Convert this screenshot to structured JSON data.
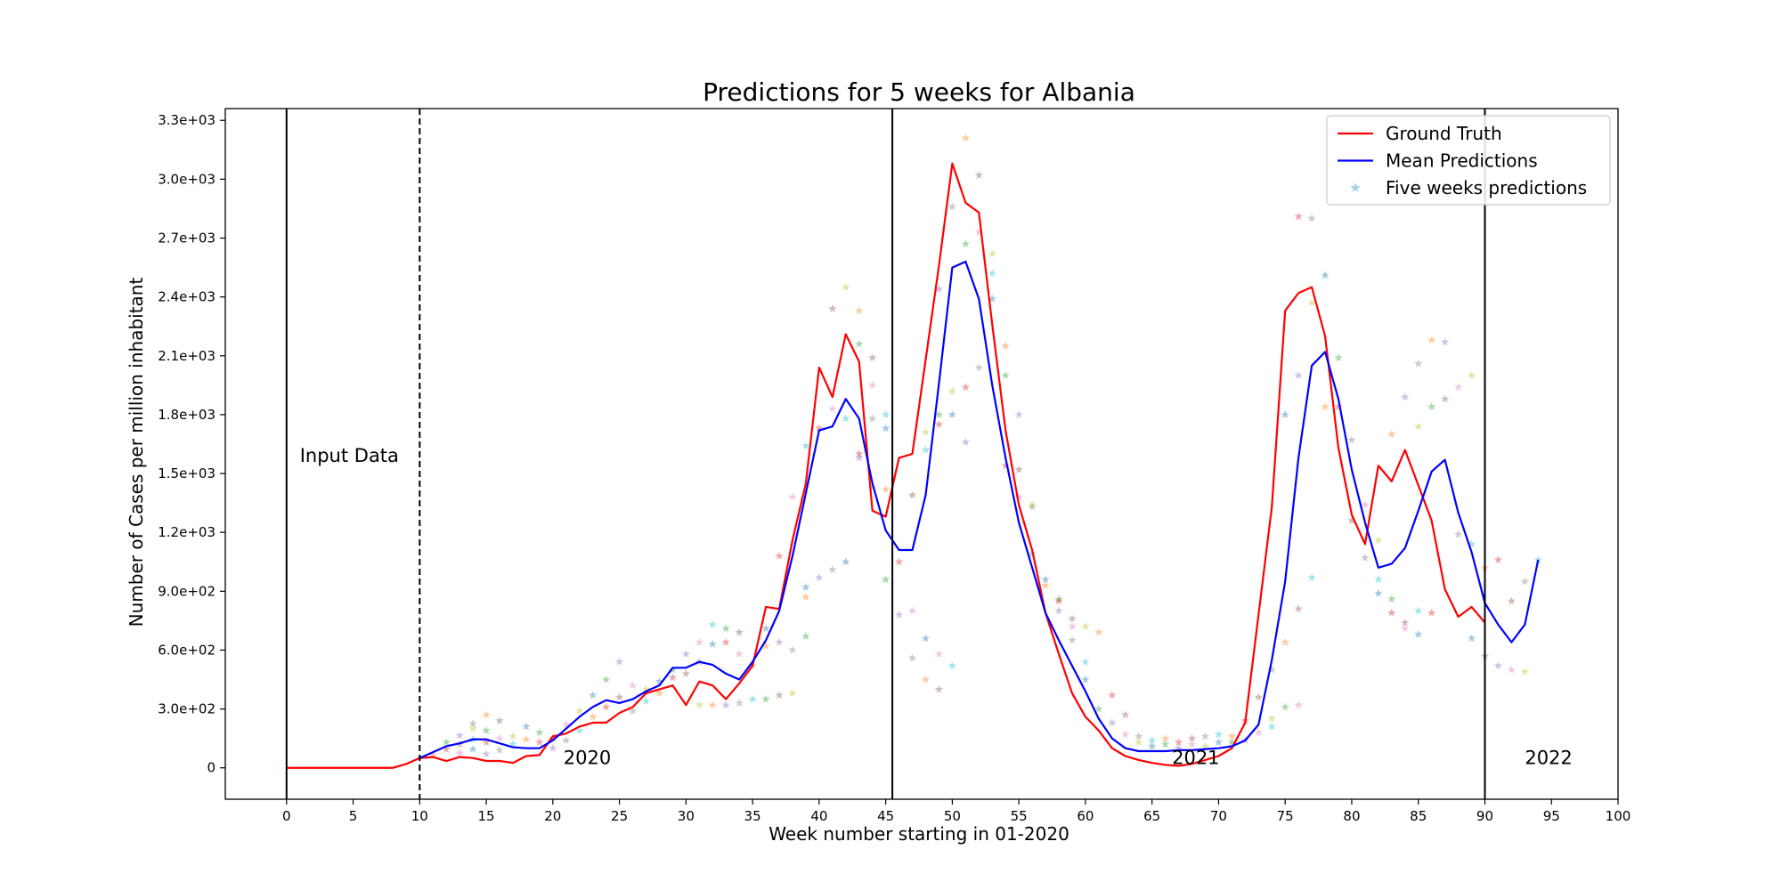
{
  "chart_data": {
    "type": "line",
    "title": "Predictions for 5 weeks for Albania",
    "xlabel": "Week number starting in 01-2020",
    "ylabel": "Number of Cases per million inhabitant",
    "xlim": [
      -4.6,
      100
    ],
    "ylim": [
      -160,
      3360
    ],
    "x_ticks": [
      0,
      5,
      10,
      15,
      20,
      25,
      30,
      35,
      40,
      45,
      50,
      55,
      60,
      65,
      70,
      75,
      80,
      85,
      90,
      95,
      100
    ],
    "x_tick_labels": [
      "0",
      "5",
      "10",
      "15",
      "20",
      "25",
      "30",
      "35",
      "40",
      "45",
      "50",
      "55",
      "60",
      "65",
      "70",
      "75",
      "80",
      "85",
      "90",
      "95",
      "100"
    ],
    "y_ticks": [
      0,
      300,
      600,
      900,
      1200,
      1500,
      1800,
      2100,
      2400,
      2700,
      3000,
      3300
    ],
    "y_tick_labels": [
      "0",
      "3.0e+02",
      "6.0e+02",
      "9.0e+02",
      "1.2e+03",
      "1.5e+03",
      "1.8e+03",
      "2.1e+03",
      "2.4e+03",
      "2.7e+03",
      "3.0e+03",
      "3.3e+03"
    ],
    "grid": false,
    "legend_position": "top-right",
    "vertical_lines": [
      {
        "x": 0,
        "style": "solid"
      },
      {
        "x": 10,
        "style": "dashed"
      },
      {
        "x": 45.5,
        "style": "solid"
      },
      {
        "x": 90,
        "style": "solid"
      }
    ],
    "annotations": [
      {
        "text": "Input Data",
        "x": 1,
        "y": 1560
      },
      {
        "text": "2020",
        "x": 20.8,
        "y": 20
      },
      {
        "text": "2021",
        "x": 66.5,
        "y": 20
      },
      {
        "text": "2022",
        "x": 93,
        "y": 20
      }
    ],
    "legend": [
      {
        "label": "Ground Truth",
        "kind": "line",
        "color": "#ff0000"
      },
      {
        "label": "Mean Predictions",
        "kind": "line",
        "color": "#0000ff"
      },
      {
        "label": "Five weeks predictions",
        "kind": "marker",
        "color": "#7fbfdf"
      }
    ],
    "series": [
      {
        "name": "Ground Truth",
        "color": "#ff0000",
        "x": [
          0,
          1,
          2,
          3,
          4,
          5,
          6,
          7,
          8,
          9,
          10,
          11,
          12,
          13,
          14,
          15,
          16,
          17,
          18,
          19,
          20,
          21,
          22,
          23,
          24,
          25,
          26,
          27,
          28,
          29,
          30,
          31,
          32,
          33,
          34,
          35,
          36,
          37,
          38,
          39,
          40,
          41,
          42,
          43,
          44,
          45,
          46,
          47,
          48,
          49,
          50,
          51,
          52,
          53,
          54,
          55,
          56,
          57,
          58,
          59,
          60,
          61,
          62,
          63,
          64,
          65,
          66,
          67,
          68,
          69,
          70,
          71,
          72,
          73,
          74,
          75,
          76,
          77,
          78,
          79,
          80,
          81,
          82,
          83,
          84,
          85,
          86,
          87,
          88,
          89,
          90
        ],
        "values": [
          0,
          0,
          0,
          0,
          0,
          0,
          0,
          0,
          0,
          20,
          50,
          55,
          35,
          55,
          50,
          35,
          35,
          25,
          60,
          65,
          160,
          175,
          210,
          230,
          230,
          280,
          310,
          380,
          400,
          420,
          320,
          440,
          420,
          350,
          430,
          520,
          820,
          810,
          1160,
          1450,
          2040,
          1890,
          2210,
          2070,
          1310,
          1280,
          1580,
          1600,
          2080,
          2560,
          3080,
          2880,
          2830,
          2260,
          1720,
          1340,
          1110,
          790,
          580,
          380,
          260,
          190,
          100,
          60,
          40,
          25,
          15,
          10,
          20,
          40,
          60,
          100,
          230,
          780,
          1330,
          2330,
          2420,
          2450,
          2200,
          1630,
          1290,
          1140,
          1540,
          1460,
          1620,
          1440,
          1260,
          910,
          770,
          820,
          740
        ]
      },
      {
        "name": "Mean Predictions",
        "color": "#0000ff",
        "x": [
          10,
          11,
          12,
          13,
          14,
          15,
          16,
          17,
          18,
          19,
          20,
          21,
          22,
          23,
          24,
          25,
          26,
          27,
          28,
          29,
          30,
          31,
          32,
          33,
          34,
          35,
          36,
          37,
          38,
          39,
          40,
          41,
          42,
          43,
          44,
          45,
          46,
          47,
          48,
          49,
          50,
          51,
          52,
          53,
          54,
          55,
          56,
          57,
          58,
          59,
          60,
          61,
          62,
          63,
          64,
          65,
          66,
          67,
          68,
          69,
          70,
          71,
          72,
          73,
          74,
          75,
          76,
          77,
          78,
          79,
          80,
          81,
          82,
          83,
          84,
          85,
          86,
          87,
          88,
          89,
          90,
          91,
          92,
          93,
          94
        ],
        "values": [
          50,
          80,
          110,
          125,
          145,
          145,
          125,
          105,
          100,
          100,
          140,
          200,
          260,
          310,
          345,
          330,
          350,
          390,
          420,
          510,
          510,
          540,
          525,
          480,
          450,
          540,
          650,
          800,
          1080,
          1400,
          1720,
          1740,
          1880,
          1780,
          1450,
          1210,
          1110,
          1110,
          1390,
          1960,
          2550,
          2580,
          2390,
          1950,
          1580,
          1250,
          1020,
          790,
          650,
          520,
          390,
          250,
          150,
          100,
          85,
          85,
          85,
          90,
          90,
          95,
          100,
          110,
          140,
          220,
          550,
          950,
          1580,
          2050,
          2120,
          1880,
          1520,
          1250,
          1020,
          1040,
          1120,
          1310,
          1510,
          1570,
          1300,
          1100,
          840,
          730,
          640,
          730,
          1060
        ]
      }
    ],
    "scatter": {
      "name": "Five weeks predictions",
      "marker": "star",
      "colors": [
        "#ff7f0e",
        "#2ca02c",
        "#d62728",
        "#9467bd",
        "#8c564b",
        "#e377c2",
        "#7f7f7f",
        "#bcbd22",
        "#17becf",
        "#1f77b4"
      ],
      "points": [
        [
          11,
          65
        ],
        [
          12,
          130
        ],
        [
          12,
          95
        ],
        [
          13,
          165
        ],
        [
          13,
          120
        ],
        [
          13,
          75
        ],
        [
          14,
          225
        ],
        [
          14,
          200
        ],
        [
          14,
          145
        ],
        [
          14,
          95
        ],
        [
          15,
          270
        ],
        [
          15,
          190
        ],
        [
          15,
          130
        ],
        [
          15,
          70
        ],
        [
          16,
          240
        ],
        [
          16,
          150
        ],
        [
          16,
          90
        ],
        [
          17,
          160
        ],
        [
          17,
          120
        ],
        [
          18,
          210
        ],
        [
          18,
          145
        ],
        [
          19,
          180
        ],
        [
          19,
          130
        ],
        [
          20,
          100
        ],
        [
          20,
          150
        ],
        [
          21,
          220
        ],
        [
          21,
          140
        ],
        [
          22,
          290
        ],
        [
          22,
          190
        ],
        [
          23,
          370
        ],
        [
          23,
          260
        ],
        [
          24,
          450
        ],
        [
          24,
          310
        ],
        [
          25,
          540
        ],
        [
          25,
          360
        ],
        [
          26,
          420
        ],
        [
          26,
          290
        ],
        [
          27,
          400
        ],
        [
          27,
          340
        ],
        [
          28,
          440
        ],
        [
          28,
          380
        ],
        [
          29,
          500
        ],
        [
          29,
          460
        ],
        [
          30,
          580
        ],
        [
          30,
          480
        ],
        [
          31,
          640
        ],
        [
          31,
          540
        ],
        [
          31,
          320
        ],
        [
          32,
          730
        ],
        [
          32,
          630
        ],
        [
          32,
          320
        ],
        [
          33,
          710
        ],
        [
          33,
          640
        ],
        [
          33,
          320
        ],
        [
          34,
          690
        ],
        [
          34,
          580
        ],
        [
          34,
          330
        ],
        [
          35,
          520
        ],
        [
          35,
          350
        ],
        [
          36,
          710
        ],
        [
          36,
          620
        ],
        [
          36,
          350
        ],
        [
          37,
          1080
        ],
        [
          37,
          640
        ],
        [
          37,
          370
        ],
        [
          38,
          1380
        ],
        [
          38,
          600
        ],
        [
          38,
          380
        ],
        [
          39,
          1640
        ],
        [
          39,
          920
        ],
        [
          39,
          870
        ],
        [
          39,
          670
        ],
        [
          40,
          1730
        ],
        [
          40,
          970
        ],
        [
          41,
          2340
        ],
        [
          41,
          1830
        ],
        [
          41,
          1010
        ],
        [
          42,
          2450
        ],
        [
          42,
          1780
        ],
        [
          42,
          1050
        ],
        [
          43,
          2330
        ],
        [
          43,
          2160
        ],
        [
          43,
          1600
        ],
        [
          43,
          1580
        ],
        [
          44,
          2090
        ],
        [
          44,
          1950
        ],
        [
          44,
          1780
        ],
        [
          44,
          1430
        ],
        [
          45,
          1800
        ],
        [
          45,
          1730
        ],
        [
          45,
          1420
        ],
        [
          45,
          960
        ],
        [
          46,
          1050
        ],
        [
          46,
          780
        ],
        [
          47,
          1390
        ],
        [
          47,
          800
        ],
        [
          47,
          560
        ],
        [
          48,
          1710
        ],
        [
          48,
          1620
        ],
        [
          48,
          660
        ],
        [
          48,
          450
        ],
        [
          49,
          1800
        ],
        [
          49,
          1750
        ],
        [
          49,
          2440
        ],
        [
          49,
          400
        ],
        [
          49,
          580
        ],
        [
          50,
          2860
        ],
        [
          50,
          1920
        ],
        [
          50,
          520
        ],
        [
          50,
          1800
        ],
        [
          51,
          3210
        ],
        [
          51,
          2670
        ],
        [
          51,
          1940
        ],
        [
          51,
          1660
        ],
        [
          52,
          3020
        ],
        [
          52,
          2730
        ],
        [
          52,
          2040
        ],
        [
          53,
          2620
        ],
        [
          53,
          2520
        ],
        [
          53,
          2390
        ],
        [
          54,
          2150
        ],
        [
          54,
          2000
        ],
        [
          54,
          1540
        ],
        [
          55,
          1800
        ],
        [
          55,
          1520
        ],
        [
          55,
          1380
        ],
        [
          56,
          1330
        ],
        [
          56,
          1340
        ],
        [
          56,
          1090
        ],
        [
          57,
          960
        ],
        [
          57,
          930
        ],
        [
          58,
          860
        ],
        [
          58,
          850
        ],
        [
          58,
          800
        ],
        [
          59,
          760
        ],
        [
          59,
          720
        ],
        [
          59,
          650
        ],
        [
          60,
          720
        ],
        [
          60,
          540
        ],
        [
          60,
          450
        ],
        [
          61,
          690
        ],
        [
          61,
          300
        ],
        [
          62,
          370
        ],
        [
          62,
          230
        ],
        [
          63,
          270
        ],
        [
          63,
          170
        ],
        [
          64,
          160
        ],
        [
          64,
          130
        ],
        [
          65,
          140
        ],
        [
          65,
          110
        ],
        [
          66,
          150
        ],
        [
          66,
          120
        ],
        [
          67,
          130
        ],
        [
          67,
          100
        ],
        [
          68,
          150
        ],
        [
          68,
          120
        ],
        [
          69,
          160
        ],
        [
          69,
          110
        ],
        [
          70,
          170
        ],
        [
          70,
          130
        ],
        [
          71,
          160
        ],
        [
          71,
          130
        ],
        [
          72,
          240
        ],
        [
          72,
          140
        ],
        [
          73,
          360
        ],
        [
          73,
          180
        ],
        [
          74,
          500
        ],
        [
          74,
          250
        ],
        [
          74,
          210
        ],
        [
          75,
          1800
        ],
        [
          75,
          640
        ],
        [
          75,
          310
        ],
        [
          76,
          2810
        ],
        [
          76,
          2000
        ],
        [
          76,
          810
        ],
        [
          76,
          320
        ],
        [
          77,
          2800
        ],
        [
          77,
          2370
        ],
        [
          77,
          970
        ],
        [
          78,
          2510
        ],
        [
          78,
          1840
        ],
        [
          79,
          2090
        ],
        [
          79,
          1840
        ],
        [
          80,
          1670
        ],
        [
          80,
          1260
        ],
        [
          81,
          1340
        ],
        [
          81,
          1070
        ],
        [
          82,
          1160
        ],
        [
          82,
          960
        ],
        [
          82,
          890
        ],
        [
          83,
          1700
        ],
        [
          83,
          860
        ],
        [
          83,
          790
        ],
        [
          84,
          1890
        ],
        [
          84,
          740
        ],
        [
          84,
          710
        ],
        [
          85,
          2060
        ],
        [
          85,
          1740
        ],
        [
          85,
          800
        ],
        [
          85,
          680
        ],
        [
          86,
          2180
        ],
        [
          86,
          1840
        ],
        [
          86,
          790
        ],
        [
          87,
          2170
        ],
        [
          87,
          1880
        ],
        [
          88,
          1940
        ],
        [
          88,
          1190
        ],
        [
          89,
          2000
        ],
        [
          89,
          1140
        ],
        [
          89,
          660
        ],
        [
          90,
          1020
        ],
        [
          90,
          570
        ],
        [
          91,
          1060
        ],
        [
          91,
          520
        ],
        [
          92,
          850
        ],
        [
          92,
          500
        ],
        [
          93,
          950
        ],
        [
          93,
          490
        ],
        [
          94,
          1060
        ]
      ]
    }
  }
}
